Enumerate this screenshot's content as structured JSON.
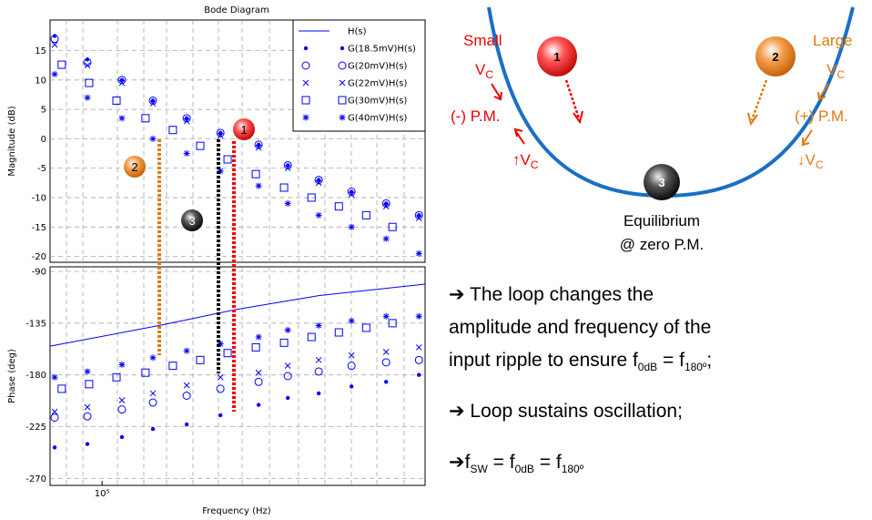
{
  "chart_data": [
    {
      "type": "scatter",
      "title": "Bode Diagram",
      "y_label": "Magnitude (dB)",
      "xlim": [
        80000,
        400000
      ],
      "xscale": "log",
      "ylim": [
        -21,
        20.2
      ],
      "yticks": [
        -20,
        -15,
        -10,
        -5,
        0,
        5,
        10,
        15
      ],
      "grid": true,
      "legend": "upper right",
      "annotations": [
        "1",
        "2",
        "3"
      ],
      "series": [
        {
          "name": "G(18.5mV)H(s)",
          "marker": "dot",
          "color": "#0000ff",
          "x": [
            81600,
            93900,
            108900,
            124400,
            143800,
            166200,
            195800,
            221900,
            253400,
            291700,
            338400,
            389600
          ],
          "values": [
            17.5,
            13.5,
            10,
            6.5,
            3.5,
            1,
            -1,
            -4.5,
            -7,
            -9,
            -11,
            -13
          ]
        },
        {
          "name": "G(20mV)H(s)",
          "marker": "circle",
          "color": "#0000ff",
          "x": [
            81600,
            93900,
            108900,
            124400,
            143800,
            166200,
            195800,
            221900,
            253400,
            291700,
            338400,
            389600
          ],
          "values": [
            17,
            13,
            10,
            6.5,
            3.5,
            1,
            -1,
            -4.5,
            -7,
            -9,
            -11,
            -13
          ]
        },
        {
          "name": "G(22mV)H(s)",
          "marker": "x",
          "color": "#0000ff",
          "x": [
            81600,
            93900,
            108900,
            124400,
            143800,
            166200,
            195800,
            221900,
            253400,
            291700,
            338400,
            389600
          ],
          "values": [
            16,
            12.5,
            9.5,
            6,
            3,
            0.5,
            -1.5,
            -5,
            -7.5,
            -9.5,
            -11.5,
            -13.5
          ]
        },
        {
          "name": "G(30mV)H(s)",
          "marker": "square",
          "color": "#0000ff",
          "x": [
            84100,
            94600,
            106400,
            120500,
            135500,
            152400,
            171400,
            193500,
            218400,
            245700,
            276300,
            310700,
            347800
          ],
          "values": [
            12.6,
            9.5,
            6.5,
            3.5,
            1.5,
            -1.2,
            -3.5,
            -6,
            -8.3,
            -10,
            -11.5,
            -13,
            -15
          ]
        },
        {
          "name": "G(40mV)H(s)",
          "marker": "star",
          "color": "#0000ff",
          "x": [
            81600,
            93900,
            108900,
            124400,
            143800,
            166200,
            195800,
            221900,
            253400,
            291700,
            338400,
            389600
          ],
          "values": [
            11,
            7,
            3.5,
            0,
            -2.5,
            -5.5,
            -8,
            -11,
            -13,
            -15,
            -17,
            -19.5
          ]
        }
      ]
    },
    {
      "type": "scatter",
      "y_label": "Phase (deg)",
      "x_label": "Frequency (Hz)",
      "xlim": [
        80000,
        400000
      ],
      "xscale": "log",
      "ylim": [
        -276,
        -86
      ],
      "yticks": [
        -270,
        -225,
        -180,
        -135,
        -90
      ],
      "xticks": [
        {
          "value": 100000,
          "label": "10⁵"
        }
      ],
      "grid": true,
      "series": [
        {
          "name": "H(s)",
          "marker": "line",
          "color": "#0000ff",
          "x": [
            80000,
            127900,
            178200,
            253400,
            400000
          ],
          "values": [
            -155,
            -137,
            -123,
            -111,
            -101
          ]
        },
        {
          "name": "G(18.5mV)H(s)",
          "marker": "dot",
          "color": "#0000ff",
          "x": [
            81600,
            93900,
            108900,
            124400,
            143800,
            166200,
            195800,
            221900,
            253400,
            291700,
            338400,
            389600
          ],
          "values": [
            -243,
            -240,
            -234,
            -227,
            -223,
            -215,
            -206,
            -200,
            -196,
            -190,
            -186,
            -180
          ]
        },
        {
          "name": "G(20mV)H(s)",
          "marker": "circle",
          "color": "#0000ff",
          "x": [
            81600,
            93900,
            108900,
            124400,
            143800,
            166200,
            195800,
            221900,
            253400,
            291700,
            338400,
            389600
          ],
          "values": [
            -217,
            -216,
            -210,
            -204,
            -198,
            -192,
            -186,
            -181,
            -177,
            -172,
            -169,
            -167
          ]
        },
        {
          "name": "G(22mV)H(s)",
          "marker": "x",
          "color": "#0000ff",
          "x": [
            81600,
            93900,
            108900,
            124400,
            143800,
            166200,
            195800,
            221900,
            253400,
            291700,
            338400,
            389600
          ],
          "values": [
            -212,
            -208,
            -202,
            -196,
            -189,
            -182,
            -178,
            -172,
            -167,
            -163,
            -160,
            -156
          ]
        },
        {
          "name": "G(30mV)H(s)",
          "marker": "square",
          "color": "#0000ff",
          "x": [
            84100,
            94600,
            106400,
            120500,
            135500,
            152400,
            171400,
            193500,
            218400,
            245700,
            276300,
            310700,
            347800
          ],
          "values": [
            -192,
            -188,
            -182,
            -178,
            -172,
            -167,
            -161,
            -156,
            -152,
            -147,
            -143,
            -139,
            -135
          ]
        },
        {
          "name": "G(40mV)H(s)",
          "marker": "star",
          "color": "#0000ff",
          "x": [
            81600,
            93900,
            108900,
            124400,
            143800,
            166200,
            195800,
            221900,
            253400,
            291700,
            338400,
            389600
          ],
          "values": [
            -182,
            -177,
            -171,
            -165,
            -159,
            -153,
            -147,
            -141,
            -137,
            -133,
            -129,
            -129
          ]
        }
      ]
    }
  ],
  "diagram": {
    "balls": [
      "1",
      "2",
      "3"
    ],
    "left_labels": [
      "Small",
      "V",
      "C",
      "(-) P.M.",
      "↑V",
      "C"
    ],
    "right_labels": [
      "Large",
      "V",
      "C",
      "(+) P.M.",
      "↓V",
      "C"
    ],
    "caption": [
      "Equilibrium",
      "@ zero P.M."
    ]
  },
  "notes": {
    "line1": "➔ The loop changes the",
    "line2": "amplitude and frequency of the",
    "line3": [
      "input ripple to ensure f",
      "0dB",
      " = f",
      "180º",
      ";"
    ],
    "line4": "➔ Loop sustains oscillation;",
    "line5": [
      "➔f",
      "SW",
      " = f",
      "0dB",
      " = f",
      "180º"
    ]
  }
}
